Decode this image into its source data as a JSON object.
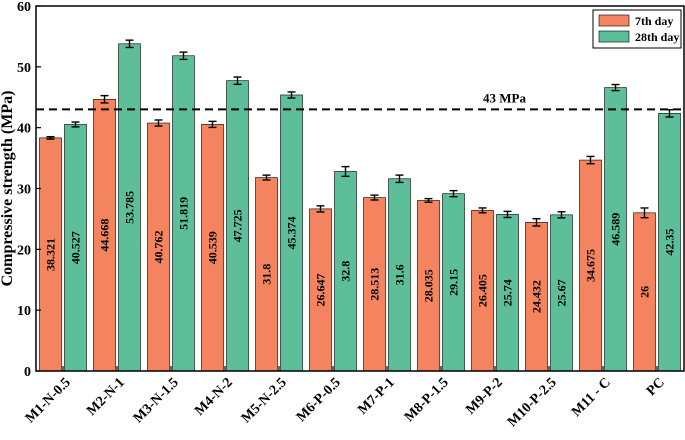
{
  "chart_data": {
    "type": "bar",
    "title": "",
    "xlabel": "",
    "ylabel": "Compressive strength (MPa)",
    "ylim": [
      0,
      60
    ],
    "yticks": [
      0,
      10,
      20,
      30,
      40,
      50,
      60
    ],
    "grid": false,
    "legend_position": "top-right",
    "categories": [
      "M1-N-0.5",
      "M2-N-1",
      "M3-N-1.5",
      "M4-N-2",
      "M5-N-2.5",
      "M6-P-0.5",
      "M7-P-1",
      "M8-P-1.5",
      "M9-P-2",
      "M10-P-2.5",
      "M11 - C",
      "PC"
    ],
    "series": [
      {
        "name": "7th day",
        "color": "#F4845F",
        "values": [
          38.321,
          44.668,
          40.762,
          40.539,
          31.8,
          26.647,
          28.513,
          28.035,
          26.405,
          24.432,
          34.675,
          26
        ],
        "labels": [
          "38.321",
          "44.668",
          "40.762",
          "40.539",
          "31.8",
          "26.647",
          "28.513",
          "28.035",
          "26.405",
          "24.432",
          "34.675",
          "26"
        ],
        "errors": [
          0.2,
          0.6,
          0.5,
          0.5,
          0.4,
          0.5,
          0.4,
          0.3,
          0.4,
          0.6,
          0.6,
          0.8
        ]
      },
      {
        "name": "28th day",
        "color": "#5DBE9A",
        "values": [
          40.527,
          53.785,
          51.819,
          47.725,
          45.374,
          32.8,
          31.6,
          29.15,
          25.74,
          25.67,
          46.589,
          42.35
        ],
        "labels": [
          "40.527",
          "53.785",
          "51.819",
          "47.725",
          "45.374",
          "32.8",
          "31.6",
          "29.15",
          "25.74",
          "25.67",
          "46.589",
          "42.35"
        ],
        "errors": [
          0.4,
          0.6,
          0.6,
          0.6,
          0.5,
          0.8,
          0.6,
          0.5,
          0.5,
          0.5,
          0.5,
          0.6
        ]
      }
    ],
    "reference_line": {
      "value": 43,
      "label": "43 MPa"
    }
  }
}
